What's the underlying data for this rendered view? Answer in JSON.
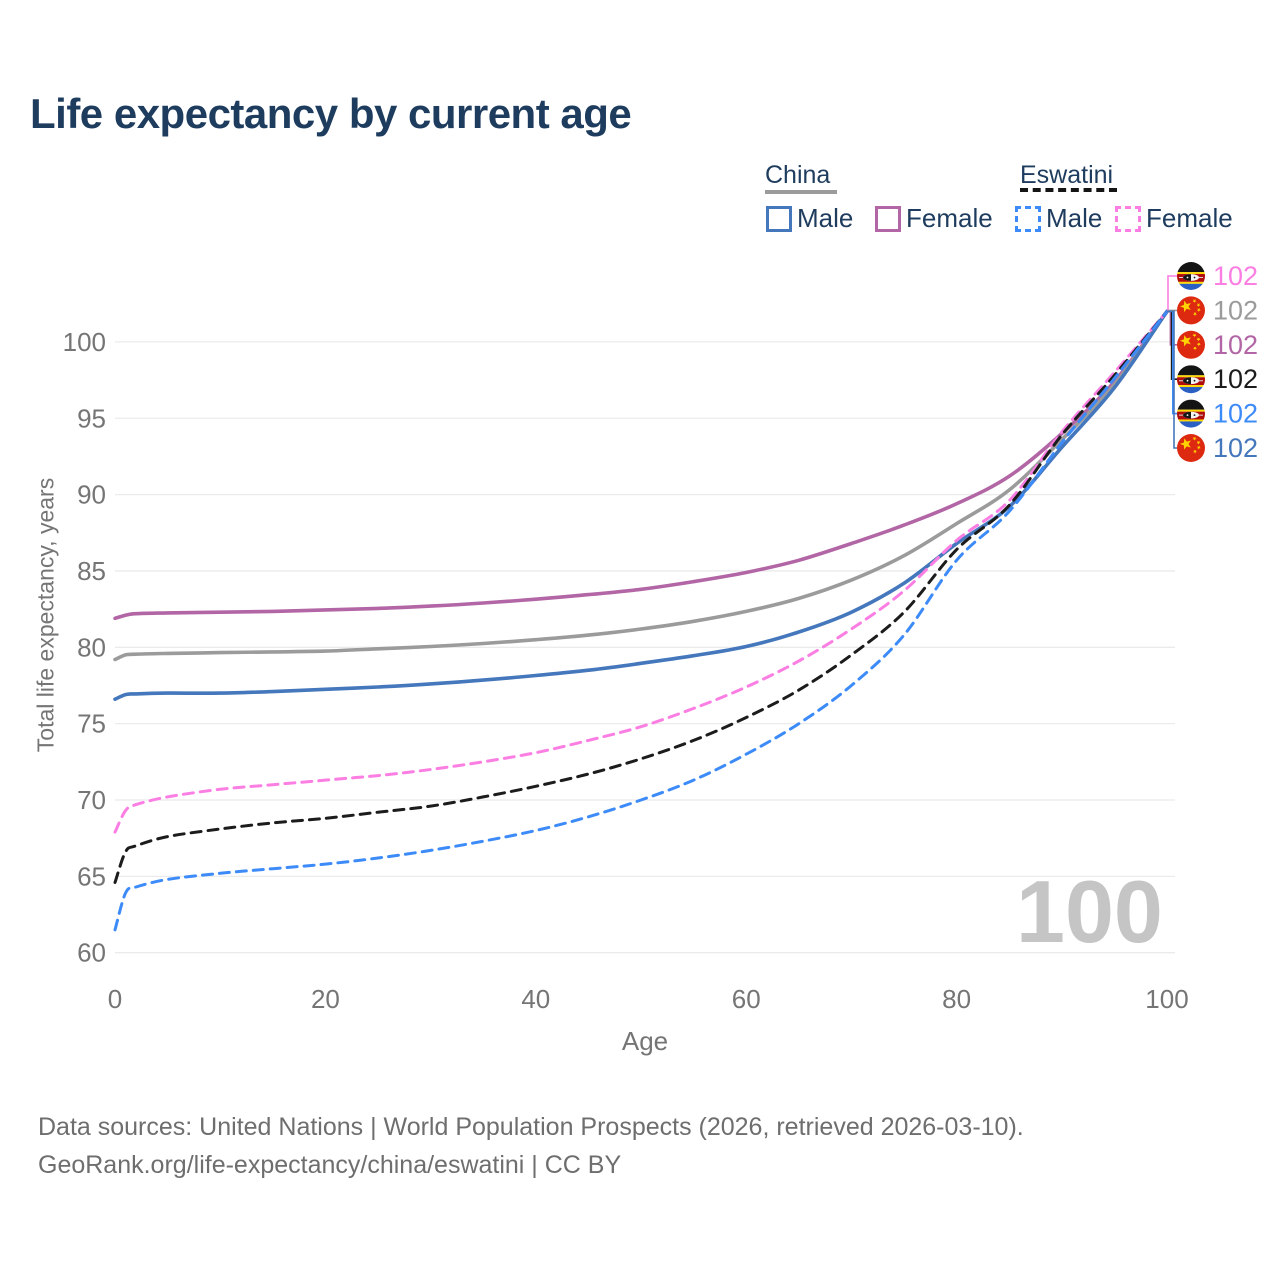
{
  "title": "Life expectancy by current age",
  "age_counter": "100",
  "legend": {
    "groups": [
      {
        "name": "China",
        "line_style": "solid",
        "underline_color": "#9b9b9b",
        "items": [
          {
            "label": "Male",
            "color": "#4477bb"
          },
          {
            "label": "Female",
            "color": "#b266a5"
          }
        ]
      },
      {
        "name": "Eswatini",
        "line_style": "dashed",
        "underline_color": "#151515",
        "items": [
          {
            "label": "Male",
            "color": "#3d8bf8"
          },
          {
            "label": "Female",
            "color": "#fb7ee3"
          }
        ]
      }
    ]
  },
  "sources": {
    "line1": "Data sources: United Nations | World Population Prospects (2026, retrieved 2026-03-10).",
    "line2": "GeoRank.org/life-expectancy/china/eswatini | CC BY"
  },
  "chart_data": {
    "type": "line",
    "title": "Life expectancy by current age",
    "xlabel": "Age",
    "ylabel": "Total life expectancy, years",
    "xlim": [
      0,
      100
    ],
    "ylim": [
      60,
      103
    ],
    "xticks": [
      0,
      20,
      40,
      60,
      80,
      100
    ],
    "yticks": [
      60,
      65,
      70,
      75,
      80,
      85,
      90,
      95,
      100
    ],
    "grid": "horizontal-only",
    "legend_position": "top-right",
    "x": [
      0,
      1,
      2,
      5,
      10,
      15,
      20,
      25,
      30,
      35,
      40,
      45,
      50,
      55,
      60,
      65,
      70,
      75,
      80,
      85,
      90,
      95,
      100
    ],
    "series": [
      {
        "name": "China Female",
        "country": "China",
        "color": "#b266a5",
        "dashed": false,
        "end_value_label": "102",
        "values": [
          81.9,
          82.1,
          82.2,
          82.25,
          82.3,
          82.35,
          82.45,
          82.55,
          82.7,
          82.9,
          83.15,
          83.45,
          83.8,
          84.3,
          84.9,
          85.7,
          86.8,
          88.0,
          89.4,
          91.2,
          94.0,
          97.4,
          102
        ]
      },
      {
        "name": "China (both sexes)",
        "country": "China",
        "color": "#9b9b9b",
        "dashed": false,
        "end_value_label": "102",
        "values": [
          79.2,
          79.5,
          79.55,
          79.6,
          79.65,
          79.7,
          79.75,
          79.9,
          80.05,
          80.25,
          80.5,
          80.8,
          81.2,
          81.7,
          82.35,
          83.2,
          84.4,
          86.0,
          88.1,
          90.3,
          93.6,
          97.2,
          102
        ]
      },
      {
        "name": "China Male",
        "country": "China",
        "color": "#4477bb",
        "dashed": false,
        "end_value_label": "102",
        "values": [
          76.6,
          76.9,
          76.95,
          77.0,
          77.0,
          77.1,
          77.25,
          77.4,
          77.6,
          77.85,
          78.15,
          78.5,
          78.95,
          79.45,
          80.05,
          81.0,
          82.3,
          84.2,
          86.8,
          89.2,
          93.1,
          97.0,
          102
        ]
      },
      {
        "name": "Eswatini Female",
        "country": "Eswatini",
        "color": "#fb7ee3",
        "dashed": true,
        "end_value_label": "102",
        "values": [
          67.9,
          69.3,
          69.7,
          70.2,
          70.7,
          71.0,
          71.3,
          71.6,
          72.0,
          72.5,
          73.1,
          73.9,
          74.8,
          76.0,
          77.4,
          79.1,
          81.2,
          83.7,
          87.0,
          89.6,
          94.1,
          98.0,
          102
        ]
      },
      {
        "name": "Eswatini (both sexes)",
        "country": "Eswatini",
        "color": "#1c1c1c",
        "dashed": true,
        "end_value_label": "102",
        "values": [
          64.6,
          66.6,
          67.0,
          67.6,
          68.1,
          68.5,
          68.8,
          69.2,
          69.6,
          70.2,
          70.9,
          71.7,
          72.7,
          73.9,
          75.4,
          77.2,
          79.5,
          82.3,
          86.4,
          89.3,
          93.9,
          97.8,
          102
        ]
      },
      {
        "name": "Eswatini Male",
        "country": "Eswatini",
        "color": "#3d8bf8",
        "dashed": true,
        "end_value_label": "102",
        "values": [
          61.5,
          63.9,
          64.3,
          64.8,
          65.2,
          65.5,
          65.8,
          66.2,
          66.7,
          67.3,
          68.0,
          68.9,
          70.0,
          71.3,
          73.0,
          75.0,
          77.5,
          80.8,
          85.7,
          88.9,
          93.4,
          97.6,
          102
        ]
      }
    ],
    "end_labels": [
      {
        "series": "Eswatini Female",
        "flag": "eswatini",
        "label": "102",
        "color": "#fb7ee3"
      },
      {
        "series": "China (both sexes)",
        "flag": "china",
        "label": "102",
        "color": "#9b9b9b"
      },
      {
        "series": "China Female",
        "flag": "china",
        "label": "102",
        "color": "#b266a5"
      },
      {
        "series": "Eswatini (both sexes)",
        "flag": "eswatini",
        "label": "102",
        "color": "#1c1c1c"
      },
      {
        "series": "Eswatini Male",
        "flag": "eswatini",
        "label": "102",
        "color": "#3d8bf8"
      },
      {
        "series": "China Male",
        "flag": "china",
        "label": "102",
        "color": "#4477bb"
      }
    ]
  }
}
